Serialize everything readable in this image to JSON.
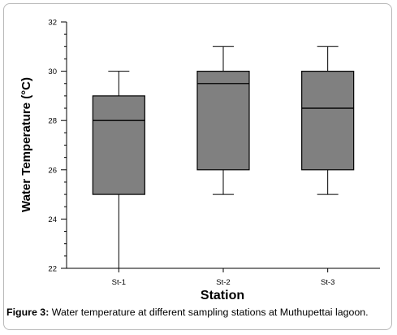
{
  "chart_data": {
    "type": "box",
    "ylabel": "Water Temperature (°C)",
    "xlabel": "Station",
    "ylim": [
      22,
      32
    ],
    "yticks": [
      22,
      24,
      26,
      28,
      30,
      32
    ],
    "categories": [
      "St-1",
      "St-2",
      "St-3"
    ],
    "boxes": [
      {
        "label": "St-1",
        "min": 22,
        "q1": 25,
        "median": 28,
        "q3": 29,
        "max": 30
      },
      {
        "label": "St-2",
        "min": 25,
        "q1": 26,
        "median": 29.5,
        "q3": 30,
        "max": 31
      },
      {
        "label": "St-3",
        "min": 25,
        "q1": 26,
        "median": 28.5,
        "q3": 30,
        "max": 31
      }
    ],
    "box_color": "#808080",
    "grid": false
  },
  "caption": {
    "label": "Figure 3:",
    "text": " Water temperature at different sampling stations at Muthupettai lagoon."
  }
}
